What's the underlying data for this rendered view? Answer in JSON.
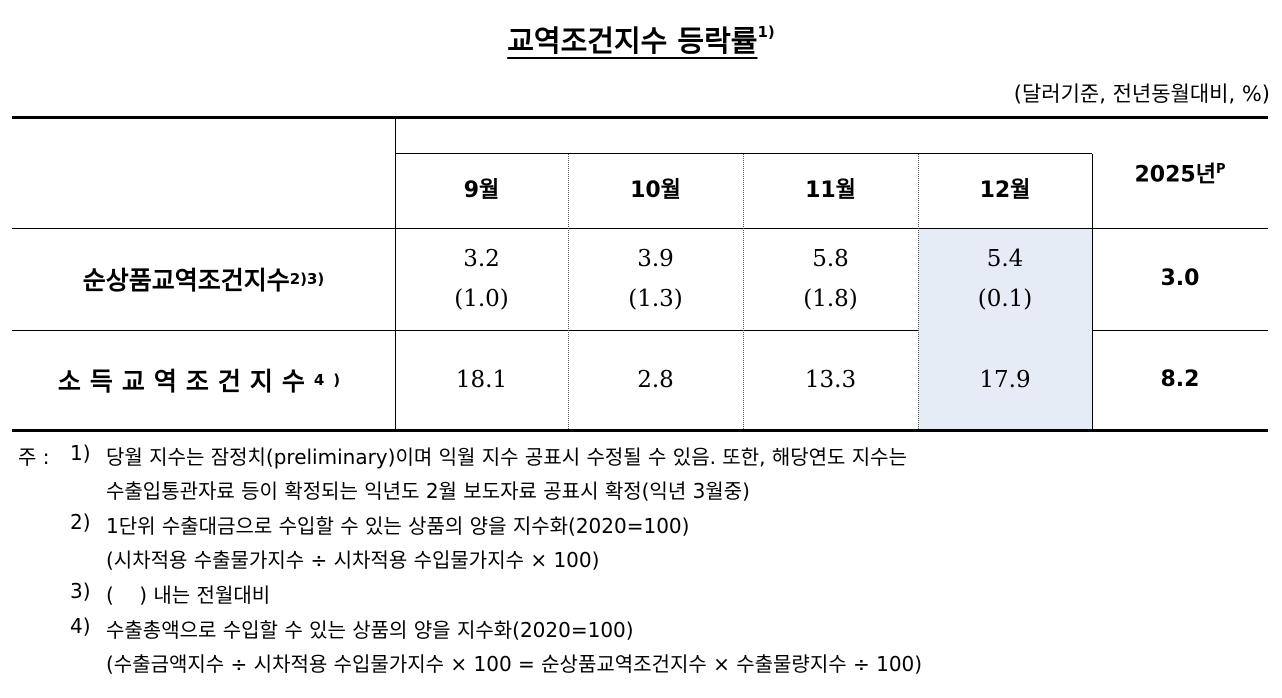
{
  "title": "교역조건지수 등락률",
  "title_note": "1)",
  "unit": "(달러기준, 전년동월대비, %)",
  "table": {
    "months": [
      "9월",
      "10월",
      "11월",
      "12월"
    ],
    "year": {
      "text": "2025년",
      "sup": "P"
    },
    "rows": [
      {
        "label": "순상품교역조건지수",
        "note": "2)3)",
        "values": [
          "3.2",
          "3.9",
          "5.8",
          "5.4"
        ],
        "changes": [
          "(1.0)",
          "(1.3)",
          "(1.8)",
          "(0.1)"
        ],
        "year": "3.0"
      },
      {
        "label": "소득교역조건지수",
        "note": "4)",
        "values": [
          "18.1",
          "2.8",
          "13.3",
          "17.9"
        ],
        "year": "8.2"
      }
    ]
  },
  "notes_label": "주 :",
  "notes": [
    {
      "marker": "1)",
      "lines": [
        "당월 지수는 잠정치(preliminary)이며 익월 지수 공표시 수정될 수 있음. 또한, 해당연도 지수는",
        "수출입통관자료 등이 확정되는 익년도 2월 보도자료 공표시 확정(익년 3월중)"
      ]
    },
    {
      "marker": "2)",
      "lines": [
        "1단위 수출대금으로 수입할 수 있는 상품의 양을 지수화(2020=100)",
        "(시차적용 수출물가지수 ÷ 시차적용 수입물가지수 × 100)"
      ]
    },
    {
      "marker": "3)",
      "lines": [
        "(    ) 내는 전월대비"
      ]
    },
    {
      "marker": "4)",
      "lines": [
        "수출총액으로 수입할 수 있는 상품의 양을 지수화(2020=100)",
        "(수출금액지수 ÷ 시차적용 수입물가지수 × 100 = 순상품교역조건지수 × 수출물량지수 ÷ 100)"
      ]
    }
  ]
}
